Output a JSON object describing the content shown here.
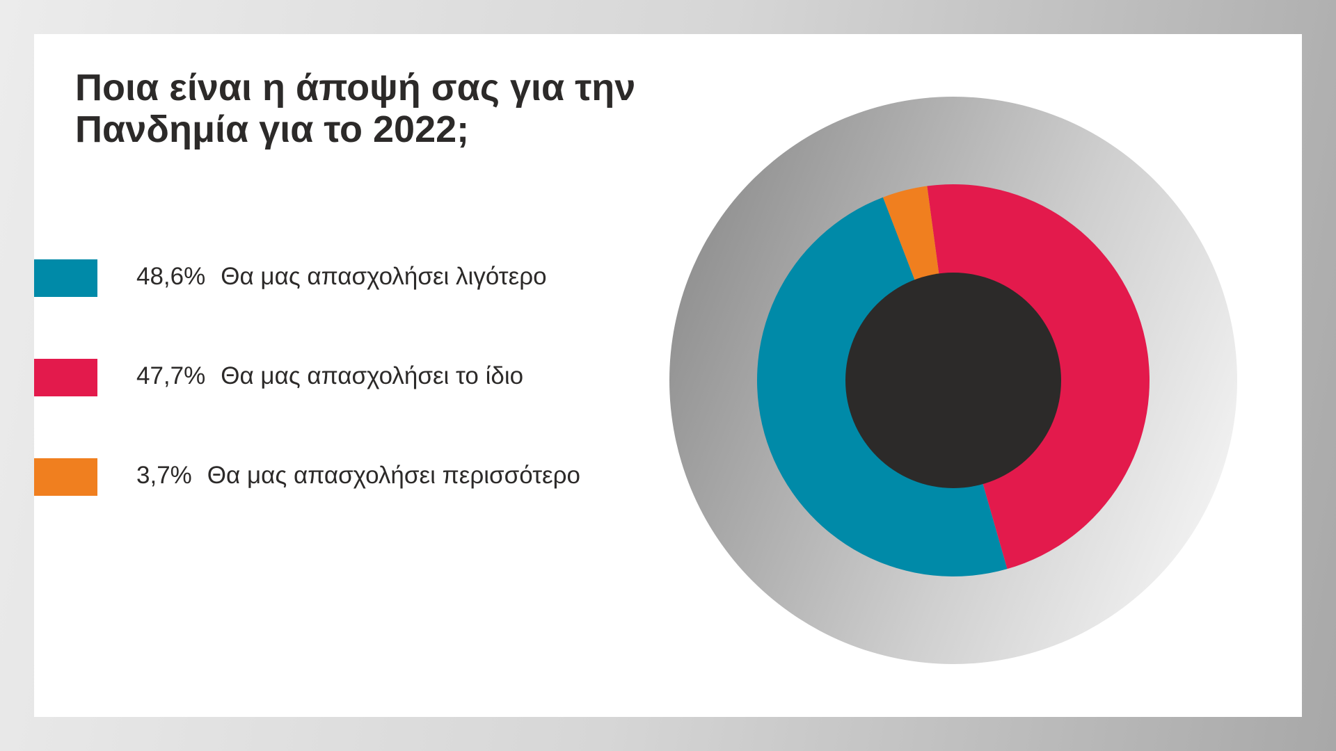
{
  "chart_data": {
    "type": "donut",
    "title": "Ποια είναι η άποψή σας για την Πανδημία για το 2022;",
    "categories": [
      "Θα μας απασχολήσει λιγότερο",
      "Θα μας απασχολήσει το ίδιο",
      "Θα μας απασχολήσει περισσότερο"
    ],
    "values": [
      48.6,
      47.7,
      3.7
    ],
    "value_labels": [
      "48,6%",
      "47,7%",
      "3,7%"
    ],
    "colors": [
      "#008aa8",
      "#e31a4c",
      "#f07f1f"
    ]
  }
}
